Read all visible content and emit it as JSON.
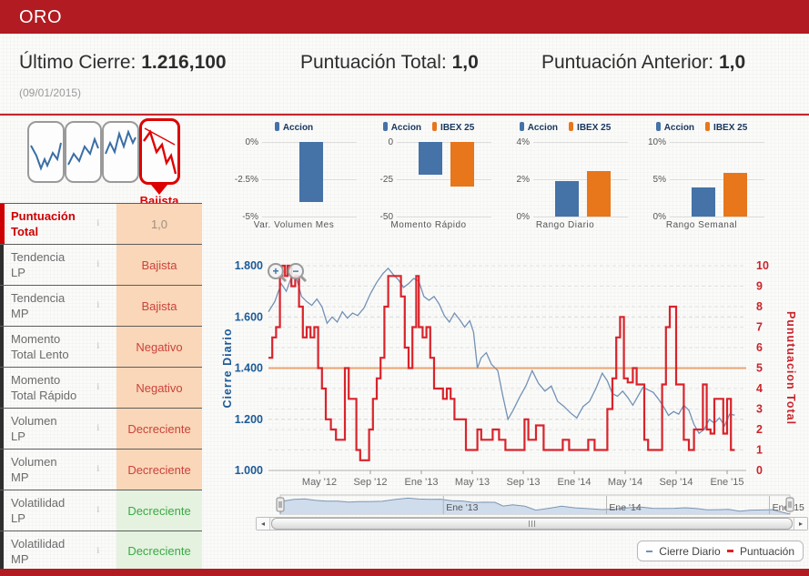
{
  "header": {
    "title": "ORO"
  },
  "footer": {
    "note": ""
  },
  "summary": {
    "ultimo_cierre_label": "Último Cierre: ",
    "ultimo_cierre_value": "1.216,100",
    "puntuacion_total_label": "Puntuación Total: ",
    "puntuacion_total_value": "1,0",
    "puntuacion_anterior_label": "Puntuación Anterior: ",
    "puntuacion_anterior_value": "1,0",
    "date": "(09/01/2015)"
  },
  "trend_selector": {
    "active_label": "Bajista",
    "items": [
      {
        "name": "trend-thumbnail-1",
        "active": false
      },
      {
        "name": "trend-thumbnail-2",
        "active": false
      },
      {
        "name": "trend-thumbnail-3",
        "active": false
      },
      {
        "name": "trend-thumbnail-bajista",
        "active": true
      }
    ]
  },
  "indicators": {
    "header_caption": "Bajista",
    "rows": [
      {
        "label_1": "Puntuación",
        "label_2": "Total",
        "value": "1,0",
        "tone": "muted",
        "highlight": true
      },
      {
        "label_1": "Tendencia",
        "label_2": "LP",
        "value": "Bajista",
        "tone": "orange",
        "highlight": false
      },
      {
        "label_1": "Tendencia",
        "label_2": "MP",
        "value": "Bajista",
        "tone": "orange",
        "highlight": false
      },
      {
        "label_1": "Momento",
        "label_2": "Total Lento",
        "value": "Negativo",
        "tone": "orange",
        "highlight": false
      },
      {
        "label_1": "Momento",
        "label_2": "Total Rápido",
        "value": "Negativo",
        "tone": "orange",
        "highlight": false
      },
      {
        "label_1": "Volumen",
        "label_2": "LP",
        "value": "Decreciente",
        "tone": "orange",
        "highlight": false
      },
      {
        "label_1": "Volumen",
        "label_2": "MP",
        "value": "Decreciente",
        "tone": "orange",
        "highlight": false
      },
      {
        "label_1": "Volatilidad",
        "label_2": "LP",
        "value": "Decreciente",
        "tone": "green",
        "highlight": false
      },
      {
        "label_1": "Volatilidad",
        "label_2": "MP",
        "value": "Decreciente",
        "tone": "green",
        "highlight": false
      }
    ]
  },
  "colors": {
    "brand_red": "#b11b21",
    "accent_red": "#dd0000",
    "series_blue": "#4572a7",
    "series_orange": "#e8761b",
    "line_blue": "#7291b4",
    "line_red": "#d9232a",
    "threshold_orange": "#eba571",
    "cell_orange": "#f9d7b8",
    "cell_green": "#e4f2df",
    "axis_blue": "#1c5a96",
    "axis_red": "#c9252b"
  },
  "icons": {
    "zoom_in_glyph": "+",
    "zoom_out_glyph": "−",
    "scroll_left_glyph": "◂",
    "scroll_right_glyph": "▸",
    "info_glyph": "ℹ",
    "nav_grip_glyph": "|||"
  },
  "chart_data": [
    {
      "id": "var-volumen-mes",
      "type": "bar",
      "title": "Var. Volumen Mes",
      "ylim": [
        -5,
        0
      ],
      "ytick_labels": [
        "0%",
        "-2.5%",
        "-5%"
      ],
      "series": [
        {
          "name": "Accion",
          "color": "#4572a7",
          "values": [
            -4.0
          ]
        }
      ]
    },
    {
      "id": "momento-rapido",
      "type": "bar",
      "title": "Momento Rápido",
      "ylim": [
        -50,
        0
      ],
      "ytick_labels": [
        "0",
        "-25",
        "-50"
      ],
      "series": [
        {
          "name": "Accion",
          "color": "#4572a7",
          "values": [
            -22
          ]
        },
        {
          "name": "IBEX 25",
          "color": "#e8761b",
          "values": [
            -30
          ]
        }
      ]
    },
    {
      "id": "rango-diario",
      "type": "bar",
      "title": "Rango Diario",
      "ylim": [
        0,
        4
      ],
      "ytick_labels": [
        "4%",
        "2%",
        "0%"
      ],
      "series": [
        {
          "name": "Accion",
          "color": "#4572a7",
          "values": [
            1.9
          ]
        },
        {
          "name": "IBEX 25",
          "color": "#e8761b",
          "values": [
            2.45
          ]
        }
      ]
    },
    {
      "id": "rango-semanal",
      "type": "bar",
      "title": "Rango Semanal",
      "ylim": [
        0,
        10
      ],
      "ytick_labels": [
        "10%",
        "5%",
        "0%"
      ],
      "series": [
        {
          "name": "Accion",
          "color": "#4572a7",
          "values": [
            3.9
          ]
        },
        {
          "name": "IBEX 25",
          "color": "#e8761b",
          "values": [
            5.8
          ]
        }
      ]
    },
    {
      "id": "main-chart",
      "type": "line",
      "x_domain_months": [
        0,
        37.5
      ],
      "x_ticks": [
        {
          "label": "May '12",
          "m": 4
        },
        {
          "label": "Sep '12",
          "m": 8
        },
        {
          "label": "Ene '13",
          "m": 12
        },
        {
          "label": "May '13",
          "m": 16
        },
        {
          "label": "Sep '13",
          "m": 20
        },
        {
          "label": "Ene '14",
          "m": 24
        },
        {
          "label": "May '14",
          "m": 28
        },
        {
          "label": "Sep '14",
          "m": 32
        },
        {
          "label": "Ene '15",
          "m": 36
        }
      ],
      "left_axis": {
        "title": "Cierre Diario",
        "min": 1000,
        "max": 1800,
        "ticks": [
          {
            "v": 1800,
            "label": "1.800"
          },
          {
            "v": 1600,
            "label": "1.600"
          },
          {
            "v": 1400,
            "label": "1.400"
          },
          {
            "v": 1200,
            "label": "1.200"
          },
          {
            "v": 1000,
            "label": "1.000"
          }
        ]
      },
      "right_axis": {
        "title": "Punutuacion Total",
        "min": 0,
        "max": 10,
        "tick_labels": [
          "0",
          "1",
          "2",
          "3",
          "4",
          "5",
          "6",
          "7",
          "8",
          "9",
          "10"
        ]
      },
      "threshold_line": {
        "value": 5,
        "color": "#eba571"
      },
      "legend": [
        "Cierre Diario",
        "Puntuación"
      ],
      "series": [
        {
          "name": "Cierre Diario",
          "type": "line",
          "axis": "left",
          "color": "#7291b4",
          "data": [
            [
              0,
              1620
            ],
            [
              0.5,
              1660
            ],
            [
              1,
              1730
            ],
            [
              1.4,
              1700
            ],
            [
              1.8,
              1755
            ],
            [
              2.2,
              1750
            ],
            [
              2.6,
              1680
            ],
            [
              3,
              1660
            ],
            [
              3.4,
              1645
            ],
            [
              3.8,
              1670
            ],
            [
              4.2,
              1640
            ],
            [
              4.6,
              1575
            ],
            [
              5,
              1600
            ],
            [
              5.4,
              1580
            ],
            [
              5.8,
              1620
            ],
            [
              6.2,
              1595
            ],
            [
              6.6,
              1615
            ],
            [
              7,
              1605
            ],
            [
              7.5,
              1635
            ],
            [
              8,
              1690
            ],
            [
              8.5,
              1735
            ],
            [
              9,
              1770
            ],
            [
              9.4,
              1790
            ],
            [
              9.8,
              1765
            ],
            [
              10.2,
              1745
            ],
            [
              10.6,
              1715
            ],
            [
              11,
              1730
            ],
            [
              11.4,
              1750
            ],
            [
              11.8,
              1740
            ],
            [
              12.2,
              1680
            ],
            [
              12.6,
              1665
            ],
            [
              13,
              1680
            ],
            [
              13.4,
              1650
            ],
            [
              13.8,
              1605
            ],
            [
              14.2,
              1580
            ],
            [
              14.6,
              1615
            ],
            [
              15,
              1590
            ],
            [
              15.4,
              1560
            ],
            [
              15.8,
              1585
            ],
            [
              16.1,
              1540
            ],
            [
              16.4,
              1400
            ],
            [
              16.7,
              1440
            ],
            [
              17.1,
              1460
            ],
            [
              17.5,
              1415
            ],
            [
              18,
              1390
            ],
            [
              18.4,
              1290
            ],
            [
              18.8,
              1200
            ],
            [
              19.2,
              1235
            ],
            [
              19.7,
              1285
            ],
            [
              20.2,
              1330
            ],
            [
              20.7,
              1390
            ],
            [
              21.2,
              1340
            ],
            [
              21.7,
              1310
            ],
            [
              22.2,
              1330
            ],
            [
              22.7,
              1270
            ],
            [
              23.2,
              1250
            ],
            [
              23.7,
              1225
            ],
            [
              24.2,
              1205
            ],
            [
              24.7,
              1250
            ],
            [
              25.2,
              1270
            ],
            [
              25.7,
              1320
            ],
            [
              26.2,
              1380
            ],
            [
              26.6,
              1350
            ],
            [
              27,
              1300
            ],
            [
              27.4,
              1290
            ],
            [
              27.8,
              1310
            ],
            [
              28.2,
              1285
            ],
            [
              28.6,
              1255
            ],
            [
              29,
              1290
            ],
            [
              29.4,
              1325
            ],
            [
              29.8,
              1315
            ],
            [
              30.2,
              1305
            ],
            [
              30.6,
              1280
            ],
            [
              31,
              1250
            ],
            [
              31.4,
              1215
            ],
            [
              31.8,
              1230
            ],
            [
              32.2,
              1220
            ],
            [
              32.6,
              1255
            ],
            [
              33,
              1235
            ],
            [
              33.4,
              1180
            ],
            [
              33.8,
              1145
            ],
            [
              34.2,
              1160
            ],
            [
              34.6,
              1200
            ],
            [
              35,
              1185
            ],
            [
              35.4,
              1205
            ],
            [
              35.8,
              1175
            ],
            [
              36.2,
              1220
            ],
            [
              36.6,
              1216
            ]
          ]
        },
        {
          "name": "Puntuación",
          "type": "step",
          "axis": "right",
          "color": "#d9232a",
          "data": [
            [
              0,
              5.5
            ],
            [
              0.3,
              6.5
            ],
            [
              0.6,
              7
            ],
            [
              0.9,
              9.5
            ],
            [
              1.1,
              10
            ],
            [
              1.3,
              9.5
            ],
            [
              1.5,
              10
            ],
            [
              1.8,
              9
            ],
            [
              2.1,
              9.5
            ],
            [
              2.4,
              8
            ],
            [
              2.7,
              6.5
            ],
            [
              3,
              7
            ],
            [
              3.3,
              6.5
            ],
            [
              3.6,
              7
            ],
            [
              3.9,
              5
            ],
            [
              4.2,
              4
            ],
            [
              4.5,
              2.5
            ],
            [
              4.9,
              2
            ],
            [
              5.3,
              1.5
            ],
            [
              5.7,
              1.5
            ],
            [
              6,
              5
            ],
            [
              6.3,
              3.5
            ],
            [
              6.6,
              3.5
            ],
            [
              6.9,
              1
            ],
            [
              7.2,
              0.5
            ],
            [
              7.6,
              0.5
            ],
            [
              7.9,
              2
            ],
            [
              8.2,
              3.5
            ],
            [
              8.5,
              4.5
            ],
            [
              8.8,
              5.5
            ],
            [
              9.1,
              8
            ],
            [
              9.4,
              9.5
            ],
            [
              10,
              9.5
            ],
            [
              10.4,
              8.5
            ],
            [
              10.7,
              6
            ],
            [
              11,
              5
            ],
            [
              11.3,
              7
            ],
            [
              11.6,
              9.5
            ],
            [
              11.8,
              7
            ],
            [
              12.1,
              6.5
            ],
            [
              12.4,
              7
            ],
            [
              12.7,
              5.5
            ],
            [
              13,
              4
            ],
            [
              13.4,
              4
            ],
            [
              13.7,
              3.5
            ],
            [
              14,
              4
            ],
            [
              14.3,
              3.5
            ],
            [
              14.6,
              2.5
            ],
            [
              15.1,
              2.5
            ],
            [
              15.5,
              1
            ],
            [
              16.1,
              1
            ],
            [
              16.4,
              2
            ],
            [
              16.7,
              1.5
            ],
            [
              17.2,
              1.5
            ],
            [
              17.6,
              2
            ],
            [
              18.1,
              1.5
            ],
            [
              18.6,
              1
            ],
            [
              19.6,
              1
            ],
            [
              20.1,
              2.5
            ],
            [
              20.4,
              1.5
            ],
            [
              21,
              2.2
            ],
            [
              21.6,
              1
            ],
            [
              22.6,
              1
            ],
            [
              23.1,
              1.5
            ],
            [
              23.6,
              1
            ],
            [
              24.6,
              1
            ],
            [
              25.1,
              1.5
            ],
            [
              25.6,
              1
            ],
            [
              26.2,
              1
            ],
            [
              26.6,
              3
            ],
            [
              27,
              4.5
            ],
            [
              27.3,
              6.5
            ],
            [
              27.6,
              7.5
            ],
            [
              27.9,
              4.5
            ],
            [
              28.2,
              4.3
            ],
            [
              28.6,
              5
            ],
            [
              28.9,
              4.2
            ],
            [
              29.2,
              4.2
            ],
            [
              29.5,
              1.5
            ],
            [
              29.8,
              1
            ],
            [
              30.6,
              1
            ],
            [
              30.9,
              4.2
            ],
            [
              31.2,
              7
            ],
            [
              31.5,
              8
            ],
            [
              31.8,
              8
            ],
            [
              32,
              4.2
            ],
            [
              32.3,
              4.2
            ],
            [
              32.6,
              1.5
            ],
            [
              33,
              1
            ],
            [
              33.4,
              2
            ],
            [
              33.8,
              2
            ],
            [
              34.1,
              4.2
            ],
            [
              34.4,
              2
            ],
            [
              34.7,
              1.8
            ],
            [
              35,
              3.5
            ],
            [
              35.4,
              3.5
            ],
            [
              35.7,
              1.8
            ],
            [
              36,
              3.5
            ],
            [
              36.3,
              1
            ],
            [
              36.6,
              1
            ]
          ]
        }
      ]
    },
    {
      "id": "navigator",
      "type": "area",
      "labels": [
        {
          "label": "Ene '13",
          "m": 12
        },
        {
          "label": "Ene '14",
          "m": 24
        },
        {
          "label": "Ene '15",
          "m": 36
        }
      ]
    }
  ]
}
